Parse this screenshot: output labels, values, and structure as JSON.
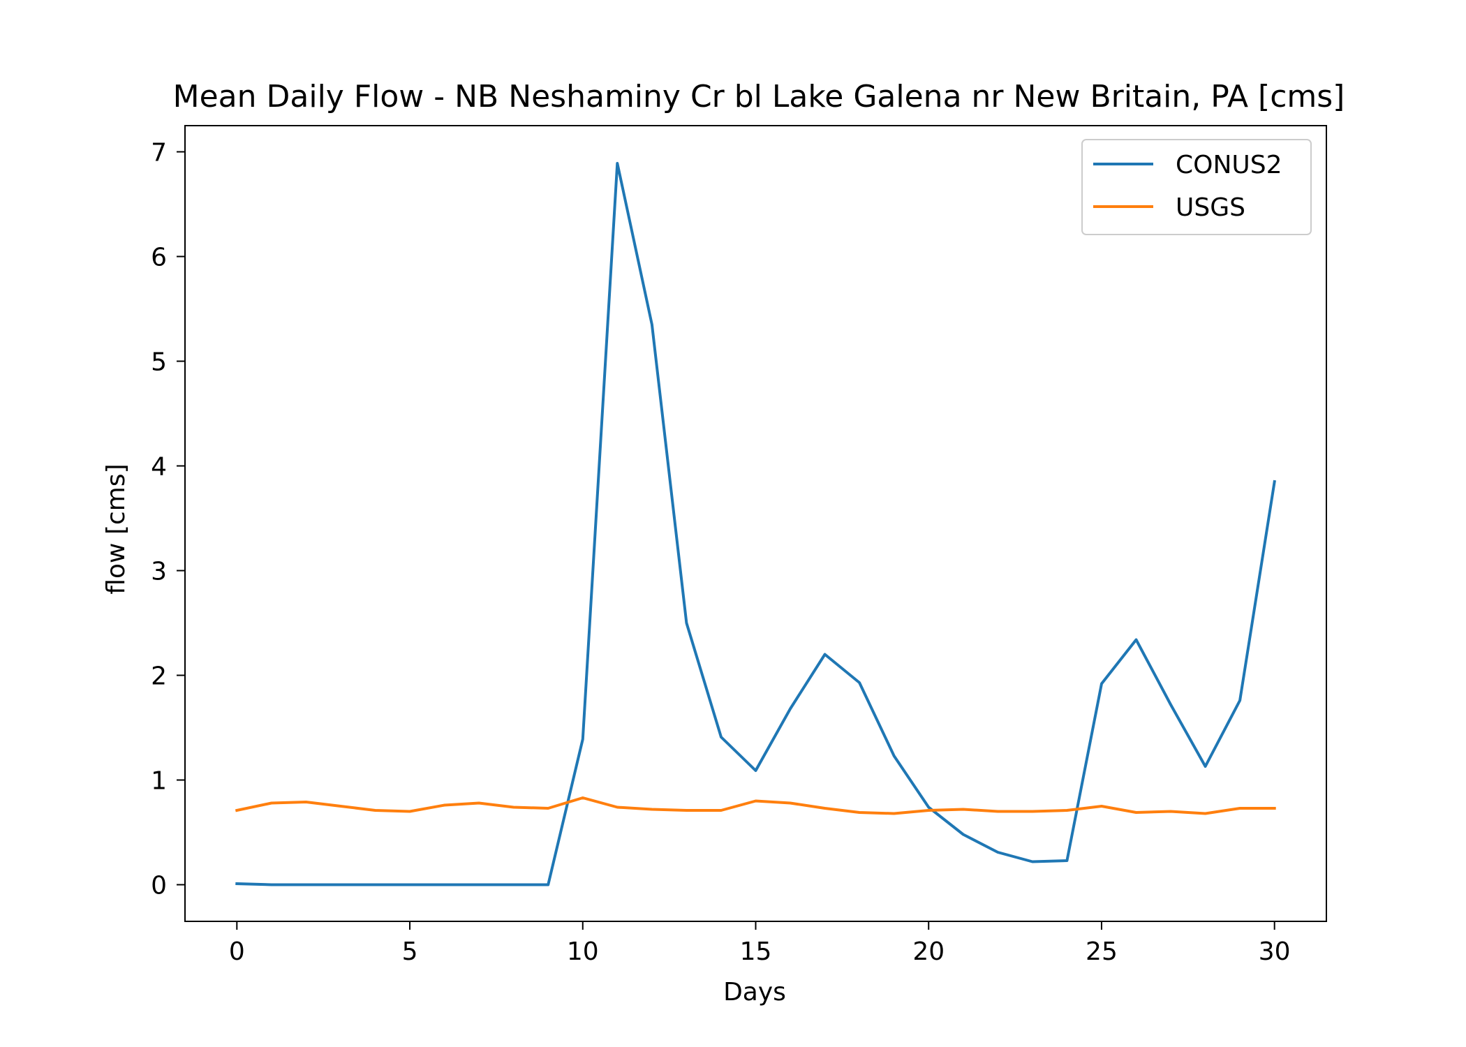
{
  "chart_data": {
    "type": "line",
    "title": "Mean Daily Flow - NB Neshaminy Cr bl Lake Galena nr New Britain, PA [cms]",
    "xlabel": "Days",
    "ylabel": "flow [cms]",
    "xlim": [
      -1.5,
      31.5
    ],
    "ylim": [
      -0.35,
      7.25
    ],
    "xticks": [
      0,
      5,
      10,
      15,
      20,
      25,
      30
    ],
    "yticks": [
      0,
      1,
      2,
      3,
      4,
      5,
      6,
      7
    ],
    "grid": false,
    "legend_position": "top-right",
    "x": [
      0,
      1,
      2,
      3,
      4,
      5,
      6,
      7,
      8,
      9,
      10,
      11,
      12,
      13,
      14,
      15,
      16,
      17,
      18,
      19,
      20,
      21,
      22,
      23,
      24,
      25,
      26,
      27,
      28,
      29,
      30
    ],
    "series": [
      {
        "name": "CONUS2",
        "color": "#1f77b4",
        "values": [
          0.01,
          0.0,
          0.0,
          0.0,
          0.0,
          0.0,
          0.0,
          0.0,
          0.0,
          0.0,
          1.39,
          6.89,
          5.35,
          2.5,
          1.41,
          1.09,
          1.68,
          2.2,
          1.93,
          1.23,
          0.74,
          0.48,
          0.31,
          0.22,
          0.23,
          1.92,
          2.34,
          1.72,
          1.13,
          1.76,
          3.85
        ]
      },
      {
        "name": "USGS",
        "color": "#ff7f0e",
        "values": [
          0.71,
          0.78,
          0.79,
          0.75,
          0.71,
          0.7,
          0.76,
          0.78,
          0.74,
          0.73,
          0.83,
          0.74,
          0.72,
          0.71,
          0.71,
          0.8,
          0.78,
          0.73,
          0.69,
          0.68,
          0.71,
          0.72,
          0.7,
          0.7,
          0.71,
          0.75,
          0.69,
          0.7,
          0.68,
          0.73,
          0.73
        ]
      }
    ]
  }
}
